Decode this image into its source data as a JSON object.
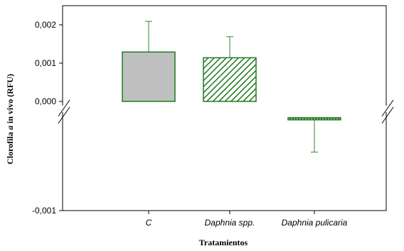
{
  "chart_data": {
    "type": "bar",
    "title": "",
    "xlabel": "Tratamientos",
    "ylabel_parts": [
      "Clorofila ",
      "a",
      " in vivo (RFU)"
    ],
    "categories": [
      "C",
      "Daphnia spp.",
      "Daphnia pulicaria"
    ],
    "values": [
      0.00129,
      0.00114,
      -2e-05
    ],
    "error_plus": [
      0.0008,
      0.00055,
      0.00035
    ],
    "y_ticks": [
      {
        "label": "0,002",
        "value": 0.002
      },
      {
        "label": "0,001",
        "value": 0.001
      },
      {
        "label": "0,000",
        "value": 0.0
      },
      {
        "label": "-0,001",
        "value": -0.001
      }
    ],
    "axis_break": true,
    "ylim_upper_segment": [
      0,
      0.0024
    ],
    "ylim_lower_segment": [
      -0.001,
      0.0
    ],
    "bar_fills": [
      "solid-gray",
      "diagonal-hatch-green",
      "crosshatch-green"
    ],
    "colors": {
      "bar_outline": "#1f7a1f",
      "bar_gray": "#c0c0c0",
      "hatch_green": "#1f7a1f",
      "error_bar": "#2e8b2e",
      "axis": "#000000"
    },
    "grid": false,
    "legend": "none"
  }
}
